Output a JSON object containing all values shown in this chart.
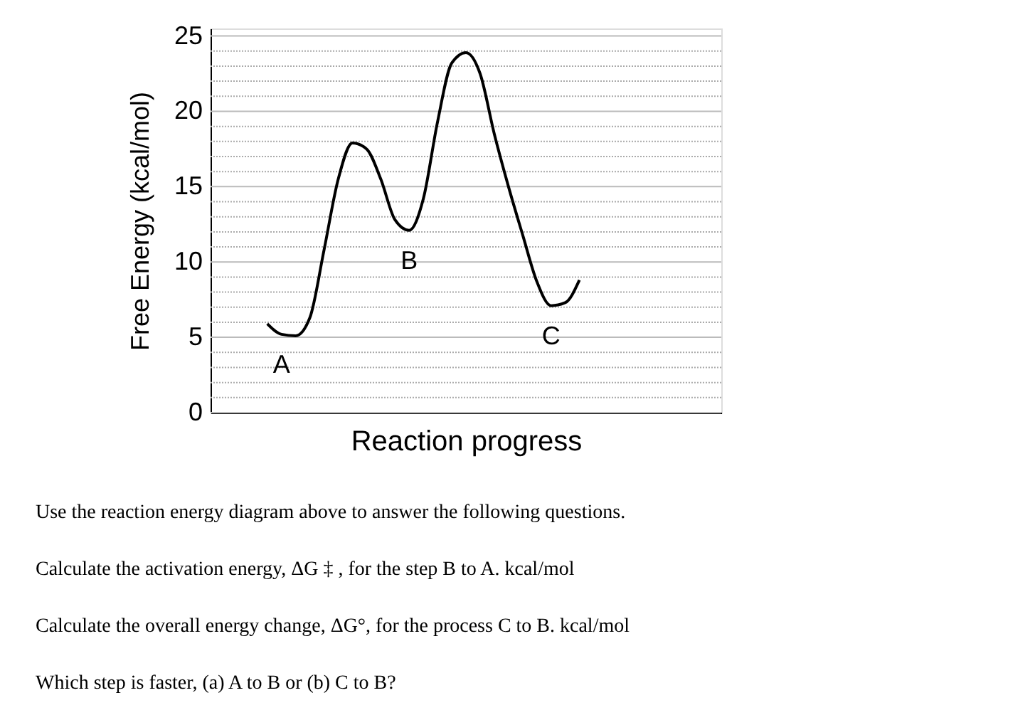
{
  "chart_data": {
    "type": "line",
    "ylabel": "Free Energy (kcal/mol)",
    "xlabel": "Reaction progress",
    "categories": [
      null,
      null,
      null,
      null,
      null,
      null,
      null,
      null,
      null,
      null,
      null,
      null,
      null,
      null,
      null,
      null,
      null,
      null,
      null,
      null,
      null,
      null,
      null,
      null,
      null,
      null,
      null,
      null,
      null,
      null,
      null,
      null,
      null,
      null,
      null,
      null,
      null
    ],
    "series": [
      {
        "color": "#000000",
        "values": [
          null,
          null,
          null,
          null,
          5.9,
          5.2,
          5.1,
          6.3,
          10.8,
          15.5,
          17.9,
          17.5,
          15.5,
          12.8,
          12.1,
          14.2,
          19.3,
          23.2,
          23.9,
          22.5,
          18.5,
          15.0,
          11.8,
          8.7,
          7.1,
          7.3,
          8.8,
          null,
          null,
          null,
          null,
          null,
          null,
          null,
          null,
          null,
          null
        ],
        "value_labels": [
          null,
          null,
          null,
          null,
          null,
          "A",
          null,
          null,
          null,
          null,
          null,
          null,
          null,
          null,
          "B",
          null,
          null,
          null,
          null,
          null,
          null,
          null,
          null,
          null,
          "C",
          null,
          null,
          null,
          null,
          null,
          null,
          null,
          null,
          null,
          null,
          null,
          null
        ]
      }
    ],
    "ylim": [
      0,
      25.5
    ],
    "yticks": [
      0,
      {
        "value": 1,
        "label": null
      },
      {
        "value": 2,
        "label": null
      },
      {
        "value": 3,
        "label": null
      },
      {
        "value": 4,
        "label": null
      },
      5,
      {
        "value": 6,
        "label": null
      },
      {
        "value": 7,
        "label": null
      },
      {
        "value": 8,
        "label": null
      },
      {
        "value": 9,
        "label": null
      },
      10,
      {
        "value": 11,
        "label": null
      },
      {
        "value": 12,
        "label": null
      },
      {
        "value": 13,
        "label": null
      },
      {
        "value": 14,
        "label": null
      },
      15,
      {
        "value": 16,
        "label": null
      },
      {
        "value": 17,
        "label": null
      },
      {
        "value": 18,
        "label": null
      },
      {
        "value": 19,
        "label": null
      },
      20,
      {
        "value": 21,
        "label": null
      },
      {
        "value": 22,
        "label": null
      },
      {
        "value": 23,
        "label": null
      },
      {
        "value": 24,
        "label": null
      },
      25
    ],
    "grid": "y",
    "tick_labels": "y",
    "marker": "none",
    "line_style": "solid",
    "annotations": [
      "Use the reaction energy diagram above to answer the following questions.",
      "Calculate the activation energy, ΔG ‡ , for the step B to A.          kcal/mol",
      "Calculate the overall energy change, ΔG°, for the process C to B.          kcal/mol",
      "Which step is faster, (a) A to B or (b) C to B?"
    ]
  }
}
